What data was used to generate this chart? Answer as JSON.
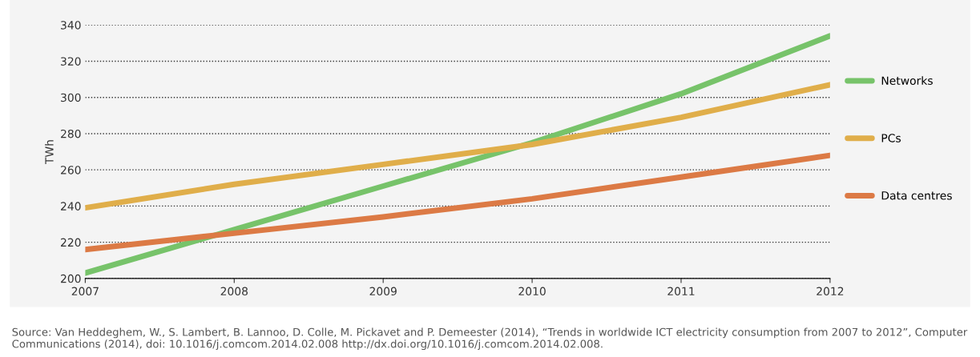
{
  "chart_data": {
    "type": "line",
    "ylabel": "TWh",
    "x": [
      2007,
      2008,
      2009,
      2010,
      2011,
      2012
    ],
    "series": [
      {
        "name": "Networks",
        "color": "#77c36a",
        "values": [
          203,
          227,
          251,
          275,
          302,
          334
        ]
      },
      {
        "name": "PCs",
        "color": "#e0ae4a",
        "values": [
          239,
          252,
          263,
          274,
          289,
          307
        ]
      },
      {
        "name": "Data centres",
        "color": "#dc7a45",
        "values": [
          216,
          225,
          234,
          244,
          256,
          268
        ]
      }
    ],
    "xlim": [
      2007,
      2012
    ],
    "xticks": [
      2007,
      2008,
      2009,
      2010,
      2011,
      2012
    ],
    "ylim": [
      200,
      340
    ],
    "yticks": [
      200,
      220,
      240,
      260,
      280,
      300,
      320,
      340
    ],
    "grid": "y",
    "legend": "right",
    "marker": "none",
    "line_style": "solid",
    "annotations": [
      "Source: Van Heddeghem, W., S. Lambert, B. Lannoo, D. Colle, M. Pickavet and P. Demeester (2014), “Trends in worldwide ICT electricity consumption from 2007 to 2012”, Computer Communications (2014), doi: 10.1016/j.comcom.2014.02.008 http://dx.doi.org/10.1016/j.comcom.2014.02.008."
    ]
  }
}
